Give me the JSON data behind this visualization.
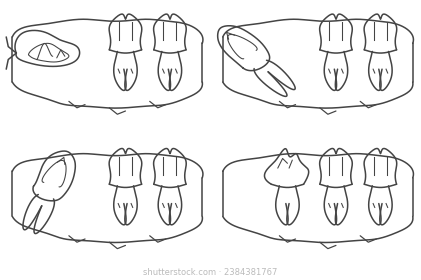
{
  "background_color": "#ffffff",
  "line_color": "#444444",
  "line_width": 1.1,
  "figsize": [
    4.21,
    2.8
  ],
  "dpi": 100,
  "watermark_text": "shutterstock.com · 2384381767",
  "watermark_color": "#bbbbbb",
  "watermark_fontsize": 6.0
}
